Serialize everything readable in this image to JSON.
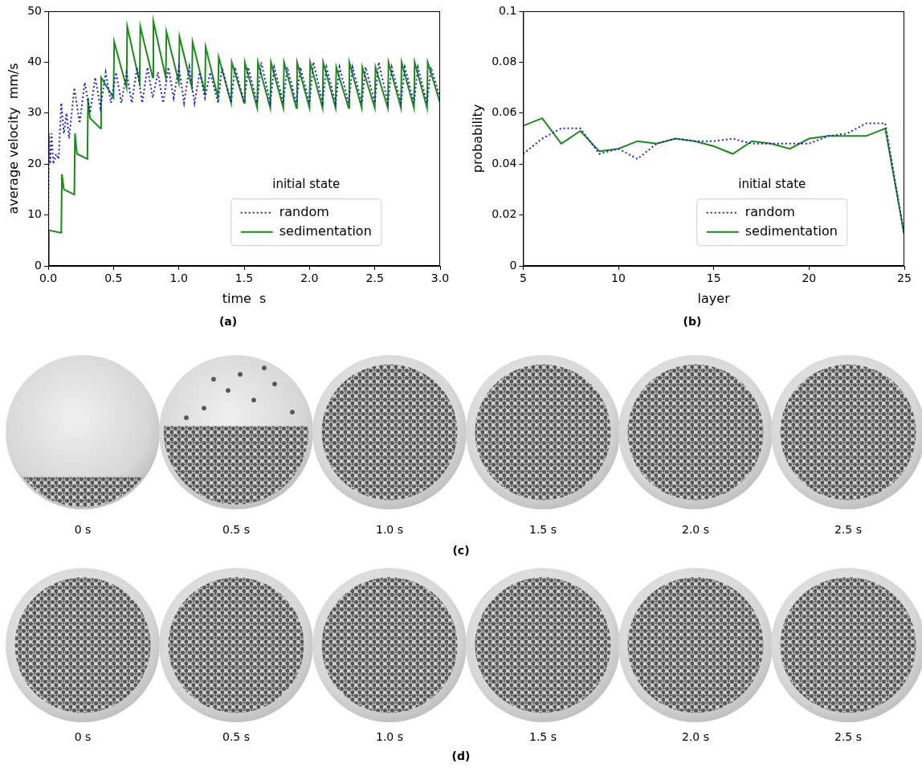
{
  "chart_data": [
    {
      "type": "line",
      "panel": "(a)",
      "x_label": "time  s",
      "y_label": "average velocity  mm/s",
      "xlim": [
        0,
        3
      ],
      "xticks": [
        {
          "value": 0,
          "label": "0.0"
        },
        0.5,
        {
          "value": 1,
          "label": "1.0"
        },
        1.5,
        {
          "value": 2,
          "label": "2.0"
        },
        2.5,
        {
          "value": 3,
          "label": "3.0"
        }
      ],
      "ylim": [
        0,
        50
      ],
      "yticks": [
        0,
        10,
        20,
        30,
        40,
        50
      ],
      "grid": false,
      "legend": "lower right",
      "legend_title": "initial state",
      "series": [
        {
          "name": "random",
          "color": "#1f1fcc",
          "line_style": "dotted",
          "x": [
            0,
            0.005,
            0.015,
            0.025,
            0.04,
            0.06,
            0.08,
            0.1,
            0.12,
            0.14,
            0.16,
            0.2,
            0.24,
            0.28,
            0.32,
            0.36,
            0.4,
            0.44,
            0.48,
            0.52,
            0.56,
            0.6,
            0.64,
            0.68,
            0.72,
            0.76,
            0.8,
            0.84,
            0.88,
            0.92,
            0.96,
            1.0,
            1.04,
            1.08,
            1.12,
            1.16,
            1.2,
            1.24,
            1.3,
            1.33,
            1.4,
            1.43,
            1.5,
            1.53,
            1.6,
            1.63,
            1.7,
            1.73,
            1.8,
            1.83,
            1.9,
            1.93,
            2.0,
            2.03,
            2.1,
            2.13,
            2.2,
            2.23,
            2.3,
            2.33,
            2.4,
            2.43,
            2.5,
            2.53,
            2.6,
            2.63,
            2.7,
            2.73,
            2.8,
            2.83,
            2.9,
            2.93,
            3.0
          ],
          "values": [
            0,
            26,
            20,
            26,
            20,
            22,
            21,
            32,
            26,
            30,
            25,
            35,
            28,
            36,
            30,
            37,
            31,
            38,
            32,
            38,
            32,
            38,
            32,
            39,
            32,
            39,
            33,
            38,
            32,
            39,
            33,
            39,
            32,
            39,
            32,
            38,
            33,
            38,
            32,
            39,
            32,
            39,
            32,
            39,
            32,
            40,
            32,
            39,
            32,
            39,
            32,
            39,
            32,
            40,
            32,
            39,
            32,
            39,
            32,
            39,
            32,
            39,
            32,
            40,
            32,
            39,
            32,
            39,
            32,
            39,
            32,
            39,
            33
          ]
        },
        {
          "name": "sedimentation",
          "color": "#1a8a1a",
          "line_style": "solid",
          "x": [
            0,
            0.005,
            0.1,
            0.105,
            0.12,
            0.2,
            0.205,
            0.22,
            0.3,
            0.305,
            0.32,
            0.4,
            0.405,
            0.5,
            0.505,
            0.6,
            0.605,
            0.7,
            0.705,
            0.8,
            0.805,
            0.9,
            0.905,
            1.0,
            1.005,
            1.1,
            1.105,
            1.2,
            1.205,
            1.3,
            1.305,
            1.4,
            1.405,
            1.5,
            1.505,
            1.6,
            1.605,
            1.7,
            1.705,
            1.8,
            1.805,
            1.9,
            1.905,
            2.0,
            2.005,
            2.1,
            2.105,
            2.2,
            2.205,
            2.3,
            2.305,
            2.4,
            2.405,
            2.5,
            2.505,
            2.6,
            2.605,
            2.7,
            2.705,
            2.8,
            2.805,
            2.9,
            2.905,
            3.0
          ],
          "values": [
            0,
            7,
            6.5,
            18,
            15,
            14,
            26,
            22,
            21,
            33,
            29,
            27,
            37,
            33,
            44,
            35,
            47,
            36,
            47,
            37,
            48,
            37,
            46,
            36,
            45,
            35,
            44,
            34,
            43,
            33,
            41,
            32,
            40,
            32,
            40,
            31,
            40,
            31,
            40,
            31,
            40,
            31,
            40,
            31,
            40,
            31,
            40,
            31,
            39,
            31,
            40,
            31,
            39,
            31,
            39,
            31,
            40,
            31,
            40,
            31,
            40,
            31,
            40,
            32
          ]
        }
      ]
    },
    {
      "type": "line",
      "panel": "(b)",
      "x_label": "layer",
      "y_label": "probability",
      "xlim": [
        5,
        25
      ],
      "xticks": [
        5,
        10,
        15,
        20,
        25
      ],
      "ylim": [
        0,
        0.1
      ],
      "yticks": [
        0,
        0.02,
        0.04,
        0.06,
        0.08,
        0.1
      ],
      "grid": false,
      "legend": "lower right",
      "legend_title": "initial state",
      "series": [
        {
          "name": "random",
          "color": "#1f1fcc",
          "line_style": "dotted",
          "x": [
            5,
            6,
            7,
            8,
            9,
            10,
            11,
            12,
            13,
            14,
            15,
            16,
            17,
            18,
            19,
            20,
            21,
            22,
            23,
            24,
            25
          ],
          "values": [
            0.044,
            0.05,
            0.054,
            0.054,
            0.044,
            0.046,
            0.042,
            0.048,
            0.05,
            0.049,
            0.049,
            0.05,
            0.048,
            0.048,
            0.048,
            0.048,
            0.051,
            0.052,
            0.056,
            0.056,
            0.012
          ]
        },
        {
          "name": "sedimentation",
          "color": "#1a8a1a",
          "line_style": "solid",
          "x": [
            5,
            6,
            7,
            8,
            9,
            10,
            11,
            12,
            13,
            14,
            15,
            16,
            17,
            18,
            19,
            20,
            21,
            22,
            23,
            24,
            25
          ],
          "values": [
            0.055,
            0.058,
            0.048,
            0.053,
            0.045,
            0.046,
            0.049,
            0.048,
            0.05,
            0.049,
            0.047,
            0.044,
            0.049,
            0.048,
            0.046,
            0.05,
            0.051,
            0.051,
            0.051,
            0.054,
            0.012
          ]
        }
      ]
    }
  ],
  "image_rows": [
    {
      "panel": "(c)",
      "frames": [
        "0 s",
        "0.5 s",
        "1.0 s",
        "1.5 s",
        "2.0 s",
        "2.5 s"
      ]
    },
    {
      "panel": "(d)",
      "frames": [
        "0 s",
        "0.5 s",
        "1.0 s",
        "1.5 s",
        "2.0 s",
        "2.5 s"
      ]
    }
  ]
}
